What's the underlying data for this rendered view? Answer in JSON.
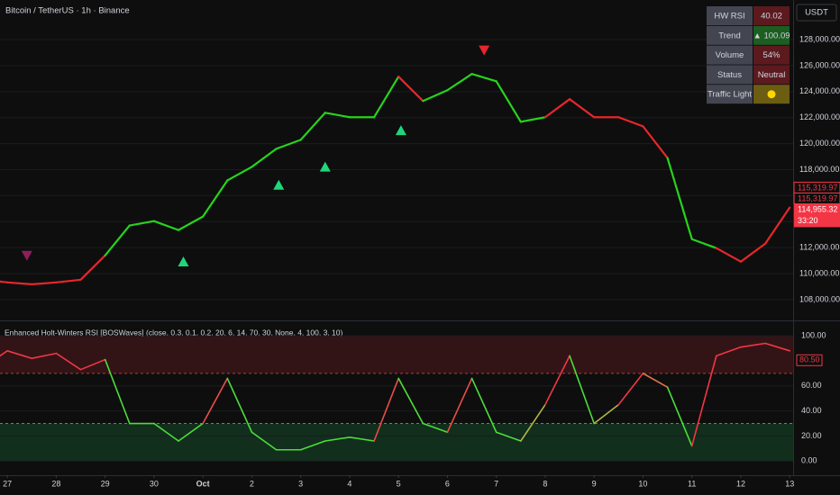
{
  "chart_data": [
    {
      "type": "candles",
      "title": "Bitcoin / TetherUS · 1h · Binance",
      "currency": "USDT",
      "x": [
        -0.15,
        0,
        0.5,
        1,
        1.5,
        2,
        2.5,
        3,
        3.5,
        4,
        4.5,
        5,
        5.5,
        6,
        6.5,
        7,
        7.5,
        8,
        8.5,
        9,
        9.5,
        10,
        10.5,
        11,
        11.5,
        12,
        12.5,
        13,
        13.5,
        14,
        14.5,
        15,
        15.5,
        16
      ],
      "values": [
        109390,
        109320,
        109180,
        109320,
        109530,
        111400,
        113700,
        114040,
        113350,
        114390,
        117170,
        118210,
        119600,
        120290,
        122375,
        122030,
        122030,
        125150,
        123280,
        124110,
        125360,
        124800,
        121680,
        122030,
        123420,
        122030,
        122030,
        121330,
        118900,
        112650,
        111960,
        110920,
        112300,
        115080
      ],
      "colors": [
        "#e8262b",
        "#e8262b",
        "#e8262b",
        "#e8262b",
        "#e8262b",
        "#e8262b",
        "#27d31b",
        "#27d31b",
        "#27d31b",
        "#27d31b",
        "#27d31b",
        "#27d31b",
        "#27d31b",
        "#27d31b",
        "#27d31b",
        "#27d31b",
        "#27d31b",
        "#27d31b",
        "#e8262b",
        "#27d31b",
        "#27d31b",
        "#27d31b",
        "#27d31b",
        "#27d31b",
        "#e8262b",
        "#e8262b",
        "#e8262b",
        "#e8262b",
        "#e8262b",
        "#27d31b",
        "#27d31b",
        "#e8262b",
        "#e8262b",
        "#e8262b"
      ],
      "xlim": [
        -0.15,
        16.07
      ],
      "ylim": [
        106400,
        131050
      ],
      "yticks": [
        {
          "value": 108000,
          "label": "108,000.00"
        },
        {
          "value": 110000,
          "label": "110,000.00"
        },
        {
          "value": 112000,
          "label": "112,000.00"
        },
        {
          "value": 114000,
          "label": "114,000.00"
        },
        {
          "value": 116000,
          "label": "116,000.00"
        },
        {
          "value": 118000,
          "label": "118,000.00"
        },
        {
          "value": 120000,
          "label": "120,000.00"
        },
        {
          "value": 122000,
          "label": "122,000.00"
        },
        {
          "value": 124000,
          "label": "124,000.00"
        },
        {
          "value": 126000,
          "label": "126,000.00"
        },
        {
          "value": 128000,
          "label": "128,000.00"
        }
      ],
      "signals": [
        {
          "x": 0.4,
          "y": 111400,
          "direction": "down",
          "color": "#8e1f5a"
        },
        {
          "x": 3.6,
          "y": 110900,
          "direction": "up",
          "color": "#1fd67c"
        },
        {
          "x": 5.55,
          "y": 116800,
          "direction": "up",
          "color": "#1fd67c"
        },
        {
          "x": 6.5,
          "y": 118200,
          "direction": "up",
          "color": "#1fd67c"
        },
        {
          "x": 8.05,
          "y": 121000,
          "direction": "up",
          "color": "#1fd67c"
        },
        {
          "x": 9.75,
          "y": 127200,
          "direction": "down",
          "color": "#e8262b"
        }
      ],
      "price_labels": [
        {
          "value": 115319.97,
          "label": "115,319.97",
          "style": "outline"
        },
        {
          "value": 115319.97,
          "label": "115,319.97",
          "style": "outline"
        },
        {
          "value": 114955.32,
          "label": "114,955.32",
          "countdown": "33:20",
          "style": "filled"
        }
      ],
      "table": [
        {
          "label": "HW RSI",
          "value": "40.02",
          "color": "#5c1a1e"
        },
        {
          "label": "Trend",
          "value": "▲ 100.09",
          "color": "#1c5e22"
        },
        {
          "label": "Volume",
          "value": "54%",
          "color": "#5c1a1e"
        },
        {
          "label": "Status",
          "value": "Neutral",
          "color": "#5c1a1e"
        },
        {
          "label": "Traffic Light",
          "light": "#ffd600",
          "color": "#6b5d12"
        }
      ],
      "xticks": [
        {
          "value": 0,
          "label": "27"
        },
        {
          "value": 1,
          "label": "28"
        },
        {
          "value": 2,
          "label": "29"
        },
        {
          "value": 3,
          "label": "30"
        },
        {
          "value": 4,
          "label": "Oct"
        },
        {
          "value": 5,
          "label": "2"
        },
        {
          "value": 6,
          "label": "3"
        },
        {
          "value": 7,
          "label": "4"
        },
        {
          "value": 8,
          "label": "5"
        },
        {
          "value": 9,
          "label": "6"
        },
        {
          "value": 10,
          "label": "7"
        },
        {
          "value": 11,
          "label": "8"
        },
        {
          "value": 12,
          "label": "9"
        },
        {
          "value": 13,
          "label": "10"
        },
        {
          "value": 14,
          "label": "11"
        },
        {
          "value": 15,
          "label": "12"
        },
        {
          "value": 16,
          "label": "13"
        }
      ]
    },
    {
      "type": "oscillator",
      "title": "Enhanced Holt-Winters RSI [BOSWaves] (close, 0.3, 0.1, 0.2, 20, 6, 14, 70, 30, None, 4, 100, 3, 10)",
      "x": [
        -0.15,
        0,
        0.5,
        1,
        1.5,
        2,
        2.5,
        3,
        3.5,
        4,
        4.5,
        5,
        5.5,
        6,
        6.5,
        7,
        7.5,
        8,
        8.5,
        9,
        9.5,
        10,
        10.5,
        11,
        11.5,
        12,
        12.5,
        13,
        13.5,
        14,
        14.5,
        15,
        15.5,
        16
      ],
      "values": [
        84,
        88,
        82,
        86,
        73,
        81,
        30,
        30,
        16,
        30,
        66,
        23,
        9,
        9,
        16,
        19,
        16,
        66,
        30,
        23,
        66,
        23,
        16,
        45,
        84,
        30,
        45,
        70,
        59,
        12,
        84,
        91,
        94,
        88
      ],
      "overbought": 70,
      "oversold": 30,
      "current": {
        "value": 80.5,
        "label": "80.50"
      },
      "xlim": [
        -0.15,
        16.07
      ],
      "ylim": [
        -7,
        108
      ],
      "yticks": [
        {
          "value": 0,
          "label": "0.00"
        },
        {
          "value": 20,
          "label": "20.00"
        },
        {
          "value": 40,
          "label": "40.00"
        },
        {
          "value": 60,
          "label": "60.00"
        },
        {
          "value": 100,
          "label": "100.00"
        }
      ]
    }
  ]
}
